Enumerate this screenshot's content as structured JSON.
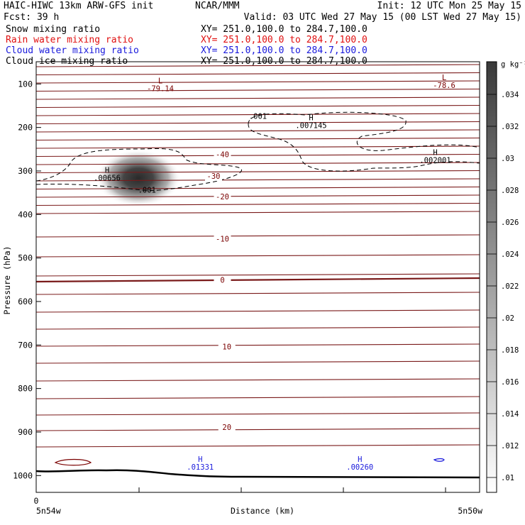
{
  "header": {
    "title_left": "HAIC-HIWC 13km ARW-GFS init",
    "title_center": "NCAR/MMM",
    "init": "Init: 12 UTC Mon 25 May 15",
    "fcst": "Fcst:   39 h",
    "valid": "Valid: 03 UTC Wed 27 May 15 (00 LST Wed 27 May 15)"
  },
  "fields": [
    {
      "name": "Snow mixing ratio",
      "xy": "XY= 251.0,100.0 to 284.7,100.0",
      "color": "#000000"
    },
    {
      "name": "Rain water mixing ratio",
      "xy": "XY= 251.0,100.0 to 284.7,100.0",
      "color": "#e01010"
    },
    {
      "name": "Cloud water mixing ratio",
      "xy": "XY= 251.0,100.0 to 284.7,100.0",
      "color": "#1a1adc"
    },
    {
      "name": "Cloud ice mixing ratio",
      "xy": "XY= 251.0,100.0 to 284.7,100.0",
      "color": "#000000"
    }
  ],
  "chart_data": {
    "type": "contour",
    "ylabel": "Pressure (hPa)",
    "xlabel": "Distance (km)",
    "x_left_label": "5n54w",
    "x_right_label": "5n50w",
    "x_origin_label": "0",
    "yticks": [
      100,
      200,
      300,
      400,
      500,
      600,
      700,
      800,
      900,
      1000
    ],
    "ylim": [
      50,
      1045
    ],
    "colorbar": {
      "unit_label": "g kg⁻¹",
      "ticks": [
        ".034",
        ".032",
        ".03",
        ".028",
        ".026",
        ".024",
        ".022",
        ".02",
        ".018",
        ".016",
        ".014",
        ".012",
        ".01"
      ]
    },
    "temperature_labels": [
      {
        "text": "-40",
        "x": 0.42,
        "p": 268
      },
      {
        "text": "-30",
        "x": 0.4,
        "p": 318
      },
      {
        "text": "-20",
        "x": 0.42,
        "p": 365
      },
      {
        "text": "-10",
        "x": 0.42,
        "p": 462
      },
      {
        "text": "0",
        "x": 0.42,
        "p": 557
      },
      {
        "text": "10",
        "x": 0.43,
        "p": 710
      },
      {
        "text": "20",
        "x": 0.43,
        "p": 895
      }
    ],
    "extrema": [
      {
        "mark": "L",
        "value": "-79.14",
        "x": 0.28,
        "p": 115,
        "color": "#7a0000"
      },
      {
        "mark": "L",
        "value": "-78.6",
        "x": 0.92,
        "p": 108,
        "color": "#7a0000"
      },
      {
        "mark": "H",
        "value": ".007145",
        "x": 0.62,
        "p": 200,
        "color": "#000000"
      },
      {
        "mark": "H",
        "value": ".002001",
        "x": 0.9,
        "p": 280,
        "color": "#000000"
      },
      {
        "mark": "H",
        "value": ".00656",
        "x": 0.16,
        "p": 320,
        "color": "#000000"
      },
      {
        "mark": "H",
        "value": ".01331",
        "x": 0.37,
        "p": 985,
        "color": "#1a1adc"
      },
      {
        "mark": "H",
        "value": ".00260",
        "x": 0.73,
        "p": 985,
        "color": "#1a1adc"
      }
    ],
    "contour_labels": [
      {
        "text": ".001",
        "x": 0.5,
        "p": 180
      },
      {
        "text": ".001",
        "x": 0.25,
        "p": 350
      }
    ]
  }
}
